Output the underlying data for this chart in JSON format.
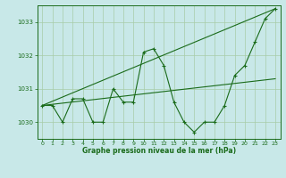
{
  "background_color": "#c8e8e8",
  "grid_color": "#a8cca8",
  "line_color": "#1a6b1a",
  "xlabel": "Graphe pression niveau de la mer (hPa)",
  "xlim": [
    -0.5,
    23.5
  ],
  "ylim": [
    1029.5,
    1033.5
  ],
  "yticks": [
    1030,
    1031,
    1032,
    1033
  ],
  "xticks": [
    0,
    1,
    2,
    3,
    4,
    5,
    6,
    7,
    8,
    9,
    10,
    11,
    12,
    13,
    14,
    15,
    16,
    17,
    18,
    19,
    20,
    21,
    22,
    23
  ],
  "series1": {
    "x": [
      0,
      1,
      2,
      3,
      4,
      5,
      6,
      7,
      8,
      9,
      10,
      11,
      12,
      13,
      14,
      15,
      16,
      17,
      18,
      19,
      20,
      21,
      22,
      23
    ],
    "y": [
      1030.5,
      1030.5,
      1030.0,
      1030.7,
      1030.7,
      1030.0,
      1030.0,
      1031.0,
      1030.6,
      1030.6,
      1032.1,
      1032.2,
      1031.7,
      1030.6,
      1030.0,
      1029.7,
      1030.0,
      1030.0,
      1030.5,
      1031.4,
      1031.7,
      1032.4,
      1033.1,
      1033.4
    ]
  },
  "series2": {
    "x": [
      0,
      23
    ],
    "y": [
      1030.5,
      1033.4
    ]
  },
  "series3": {
    "x": [
      0,
      23
    ],
    "y": [
      1030.5,
      1031.3
    ]
  }
}
